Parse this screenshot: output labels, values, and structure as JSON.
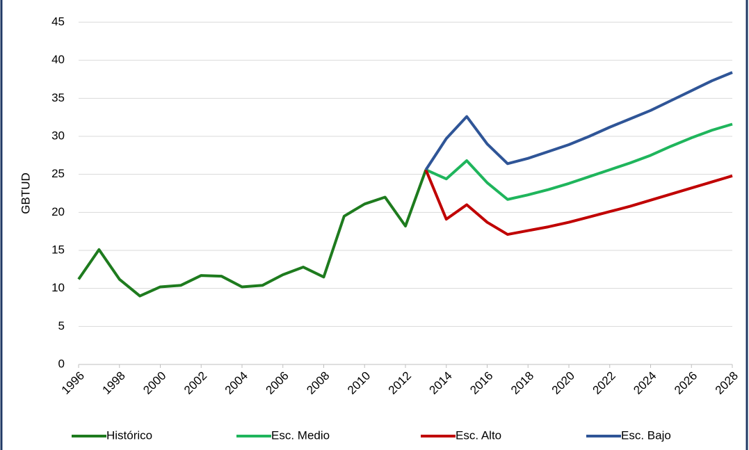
{
  "chart_data": {
    "type": "line",
    "y_label": "GBTUD",
    "x": [
      1996,
      1997,
      1998,
      1999,
      2000,
      2001,
      2002,
      2003,
      2004,
      2005,
      2006,
      2007,
      2008,
      2009,
      2010,
      2011,
      2012,
      2013,
      2014,
      2015,
      2016,
      2017,
      2018,
      2019,
      2020,
      2021,
      2022,
      2023,
      2024,
      2025,
      2026,
      2027,
      2028
    ],
    "series": [
      {
        "name": "Histórico",
        "color": "#1e7b1e",
        "values": [
          11.2,
          15.1,
          11.2,
          9.0,
          10.2,
          10.4,
          11.7,
          11.6,
          10.2,
          10.4,
          11.8,
          12.8,
          11.5,
          19.5,
          21.1,
          22.0,
          18.2,
          25.6,
          null,
          null,
          null,
          null,
          null,
          null,
          null,
          null,
          null,
          null,
          null,
          null,
          null,
          null,
          null
        ]
      },
      {
        "name": "Esc. Medio",
        "color": "#1fb55c",
        "values": [
          null,
          null,
          null,
          null,
          null,
          null,
          null,
          null,
          null,
          null,
          null,
          null,
          null,
          null,
          null,
          null,
          null,
          25.6,
          24.4,
          26.8,
          23.9,
          21.7,
          22.3,
          23.0,
          23.8,
          24.7,
          25.6,
          26.5,
          27.5,
          28.7,
          29.8,
          30.8,
          31.6
        ]
      },
      {
        "name": "Esc. Alto",
        "color": "#c00000",
        "values": [
          null,
          null,
          null,
          null,
          null,
          null,
          null,
          null,
          null,
          null,
          null,
          null,
          null,
          null,
          null,
          null,
          null,
          25.6,
          19.1,
          21.0,
          18.7,
          17.1,
          17.6,
          18.1,
          18.7,
          19.4,
          20.1,
          20.8,
          21.6,
          22.4,
          23.2,
          24.0,
          24.8
        ]
      },
      {
        "name": "Esc. Bajo",
        "color": "#2f5597",
        "values": [
          null,
          null,
          null,
          null,
          null,
          null,
          null,
          null,
          null,
          null,
          null,
          null,
          null,
          null,
          null,
          null,
          null,
          25.6,
          29.7,
          32.6,
          29.0,
          26.4,
          27.1,
          28.0,
          28.9,
          30.0,
          31.2,
          32.3,
          33.4,
          34.7,
          36.0,
          37.3,
          38.4
        ]
      }
    ],
    "xlim": [
      1996,
      2028
    ],
    "xticks": [
      1996,
      1998,
      2000,
      2002,
      2004,
      2006,
      2008,
      2010,
      2012,
      2014,
      2016,
      2018,
      2020,
      2022,
      2024,
      2026,
      2028
    ],
    "ylim": [
      0,
      45
    ],
    "yticks": [
      0,
      5,
      10,
      15,
      20,
      25,
      30,
      35,
      40,
      45
    ],
    "grid": true,
    "legend": "bottom"
  }
}
